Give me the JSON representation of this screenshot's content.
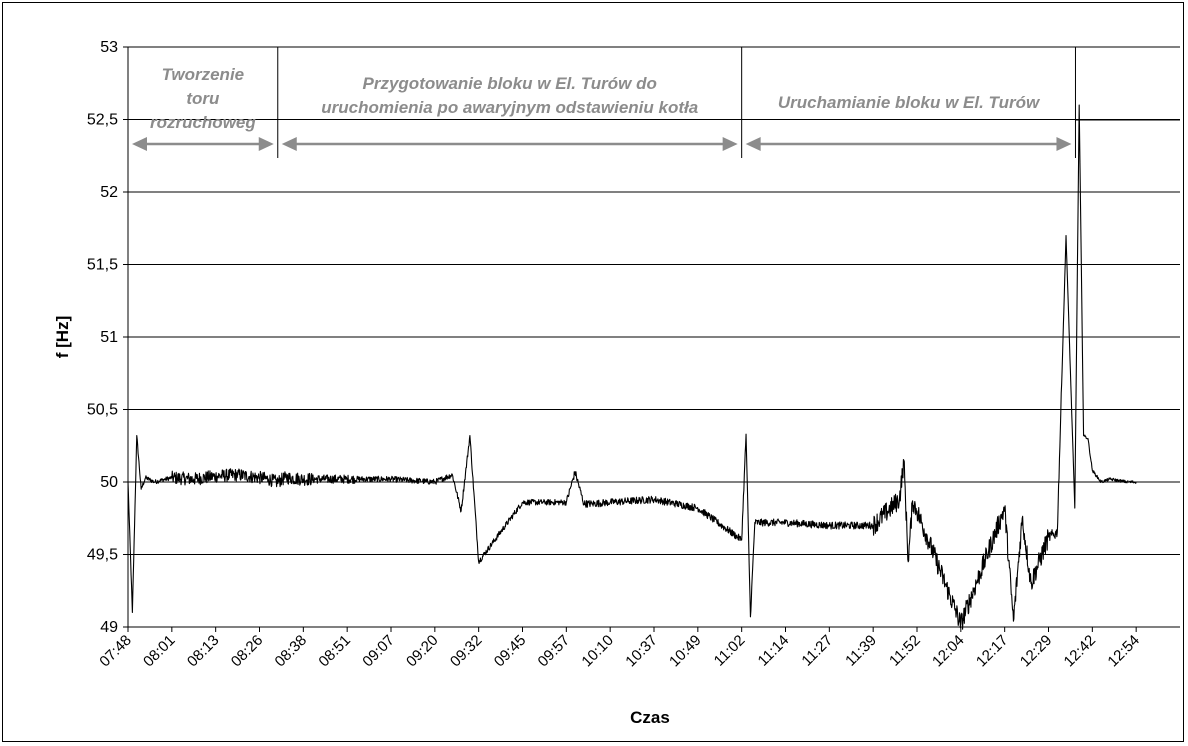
{
  "chart_data": {
    "type": "line",
    "xlabel": "Czas",
    "ylabel": "f [Hz]",
    "ylim": [
      49,
      53
    ],
    "yticks": [
      "49",
      "49,5",
      "50",
      "50,5",
      "51",
      "51,5",
      "52",
      "52,5",
      "53"
    ],
    "xticks": [
      "07:48",
      "08:01",
      "08:13",
      "08:26",
      "08:38",
      "08:51",
      "09:07",
      "09:20",
      "09:32",
      "09:45",
      "09:57",
      "10:10",
      "10:37",
      "10:49",
      "11:02",
      "11:14",
      "11:27",
      "11:39",
      "11:52",
      "12:04",
      "12:17",
      "12:29",
      "12:42",
      "12:54"
    ],
    "grid": "horizontal",
    "legend": "none",
    "line_color": "#000000",
    "phase_color": "#8c8c8c",
    "phases": [
      {
        "lines": [
          "Tworzenie",
          "toru",
          "rozruchoweg"
        ],
        "start": "07:48",
        "end": "08:31"
      },
      {
        "lines": [
          "Przygotowanie bloku w El. Turów do",
          "uruchomienia po awaryjnym odstawieniu kotła"
        ],
        "start": "08:31",
        "end": "11:02"
      },
      {
        "lines": [
          "Uruchamianie bloku w El. Turów"
        ],
        "start": "11:02",
        "end": "12:37"
      }
    ],
    "series": [
      {
        "x": [
          0,
          0.1,
          0.2,
          0.3,
          0.4,
          0.6,
          1,
          1.5,
          2,
          2.5,
          3,
          3.2,
          3.4,
          3.6,
          4,
          5,
          6,
          7,
          7.4,
          7.6,
          7.8,
          8,
          9,
          10,
          10.2,
          10.4,
          10.6,
          11,
          12,
          12.5,
          13,
          14,
          14.1,
          14.2,
          14.3,
          15,
          16,
          17,
          17.6,
          17.7,
          17.8,
          17.9,
          18,
          19,
          20,
          20.2,
          20.4,
          20.6,
          21,
          21.2,
          21.4,
          21.6,
          21.7,
          21.8,
          21.9,
          22,
          22.2,
          22.4,
          22.6,
          22.8,
          23
        ],
        "y": [
          50.0,
          49.1,
          50.32,
          49.95,
          50.03,
          50.0,
          50.03,
          50.02,
          50.04,
          50.05,
          50.03,
          50.02,
          50.0,
          50.03,
          50.02,
          50.02,
          50.02,
          50.0,
          50.05,
          49.8,
          50.32,
          49.45,
          49.86,
          49.86,
          50.07,
          49.85,
          49.85,
          49.86,
          49.88,
          49.85,
          49.82,
          49.6,
          50.33,
          49.07,
          49.72,
          49.72,
          49.7,
          49.7,
          49.88,
          50.15,
          49.45,
          49.87,
          49.8,
          49.02,
          49.82,
          49.04,
          49.75,
          49.3,
          49.62,
          49.65,
          51.7,
          49.82,
          52.6,
          50.32,
          50.3,
          50.08,
          50.0,
          50.02,
          50.01,
          50.0,
          50.0
        ]
      }
    ]
  }
}
